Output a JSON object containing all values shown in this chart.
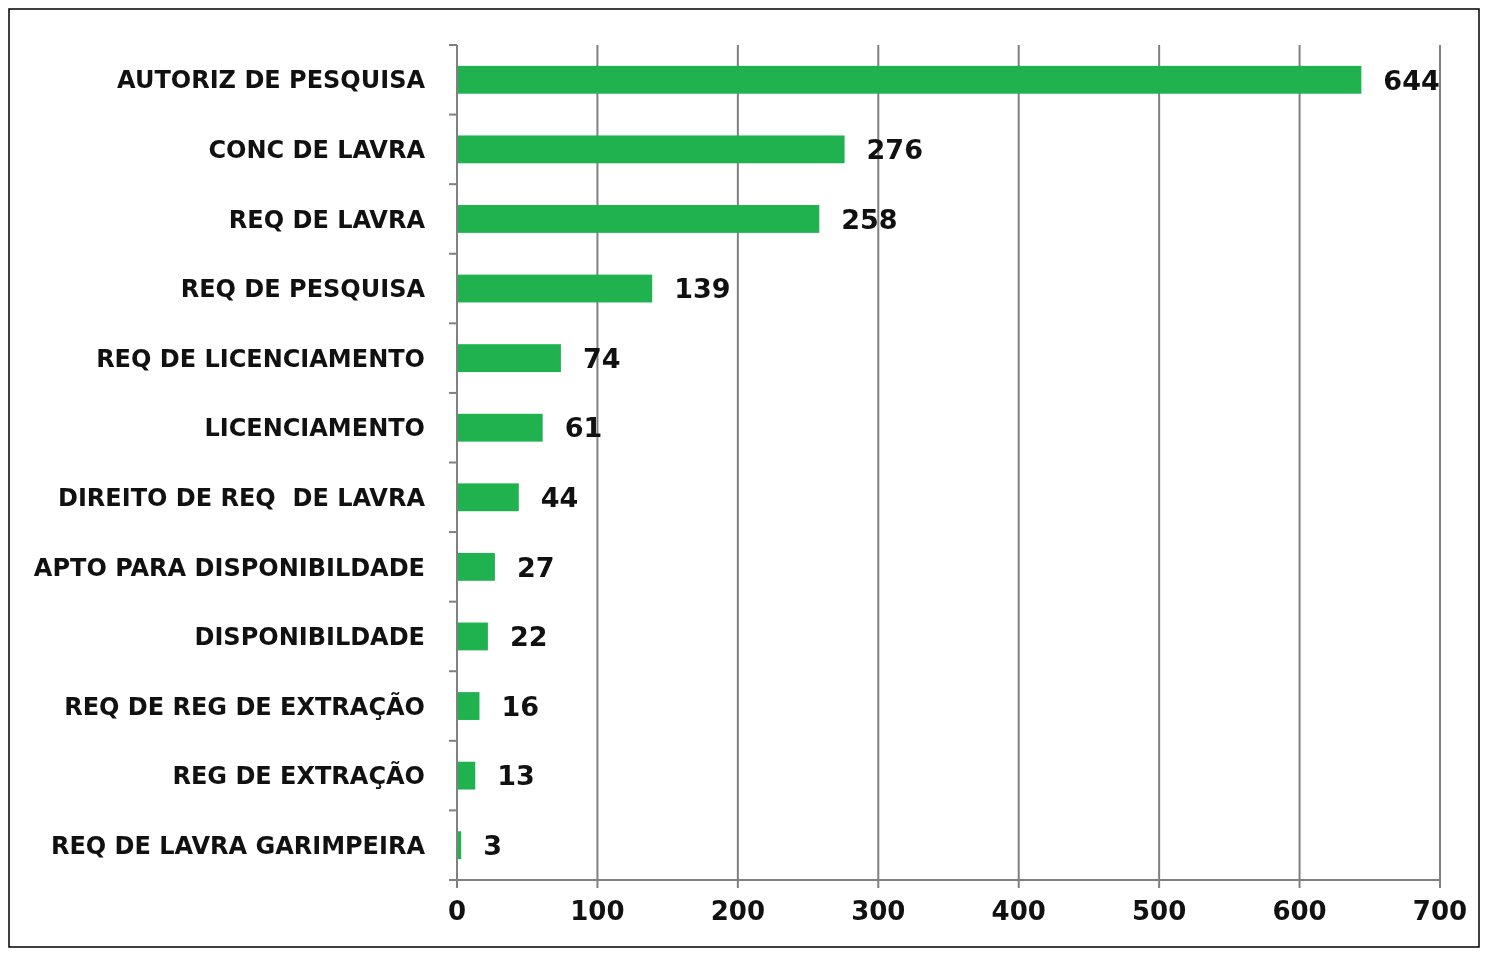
{
  "chart_data": {
    "type": "bar",
    "orientation": "horizontal",
    "categories": [
      "AUTORIZ DE PESQUISA",
      "CONC DE LAVRA",
      "REQ DE LAVRA",
      "REQ DE PESQUISA",
      "REQ DE LICENCIAMENTO",
      "LICENCIAMENTO",
      "DIREITO DE REQ  DE LAVRA",
      "APTO PARA DISPONIBILDADE",
      "DISPONIBILDADE",
      "REQ DE REG DE EXTRAÇÃO",
      "REG DE EXTRAÇÃO",
      "REQ DE LAVRA GARIMPEIRA"
    ],
    "values": [
      644,
      276,
      258,
      139,
      74,
      61,
      44,
      27,
      22,
      16,
      13,
      3
    ],
    "color": "#1fb24e",
    "xlim": [
      0,
      700
    ],
    "xticks": [
      0,
      100,
      200,
      300,
      400,
      500,
      600,
      700
    ],
    "grid": "x",
    "data_labels": true
  }
}
